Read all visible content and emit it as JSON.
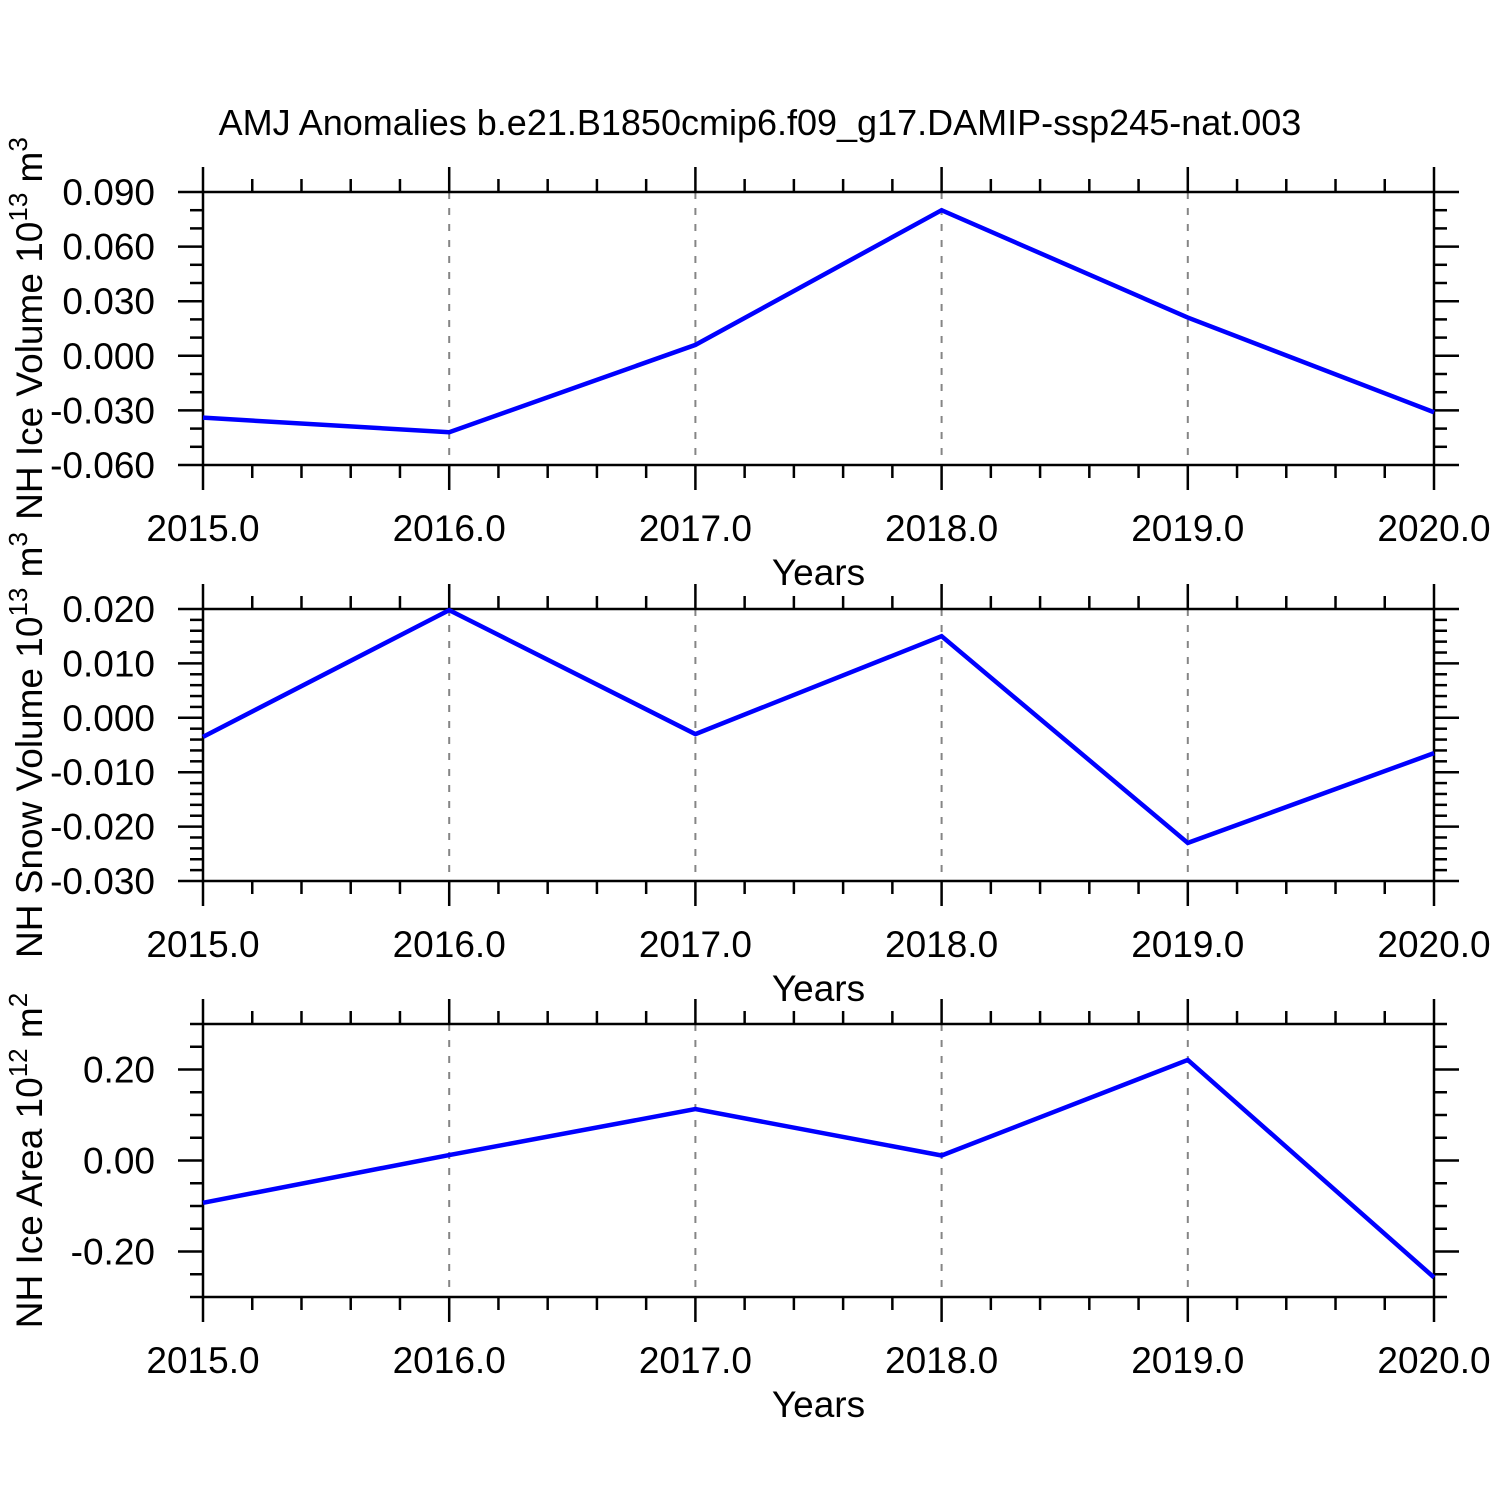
{
  "title": "AMJ Anomalies b.e21.B1850cmip6.f09_g17.DAMIP-ssp245-nat.003",
  "colors": {
    "line": "#0000ff",
    "axis": "#000000",
    "grid": "#858585",
    "text": "#000000",
    "background": "#ffffff"
  },
  "chart_data": [
    {
      "type": "line",
      "name": "nh-ice-volume",
      "ylabel_text": "NH Ice Volume 10^13 m^3",
      "ylabel_parts": [
        {
          "t": "NH Ice Volume 10"
        },
        {
          "t": "13",
          "sup": true
        },
        {
          "t": " m"
        },
        {
          "t": "3",
          "sup": true
        }
      ],
      "xlabel": "Years",
      "x": [
        2015.0,
        2016.0,
        2017.0,
        2018.0,
        2019.0,
        2020.0
      ],
      "values": [
        -0.034,
        -0.042,
        0.006,
        0.08,
        0.021,
        -0.031
      ],
      "ylim": [
        -0.06,
        0.09
      ],
      "yticks": {
        "values": [
          0.09,
          0.06,
          0.03,
          0.0,
          -0.03,
          -0.06
        ],
        "labels": [
          "0.090",
          "0.060",
          "0.030",
          "0.000",
          "-0.030",
          "-0.060"
        ],
        "minor_step": 0.01
      },
      "xlim": [
        2015.0,
        2020.0
      ],
      "xticks": {
        "values": [
          2015,
          2016,
          2017,
          2018,
          2019,
          2020
        ],
        "labels": [
          "2015.0",
          "2016.0",
          "2017.0",
          "2018.0",
          "2019.0",
          "2020.0"
        ],
        "minor_step": 0.2
      },
      "grid_x": [
        2016,
        2017,
        2018,
        2019
      ],
      "legend": "none",
      "grid": "vertical-dashed-only"
    },
    {
      "type": "line",
      "name": "nh-snow-volume",
      "ylabel_text": "NH Snow Volume 10^13 m^3",
      "ylabel_parts": [
        {
          "t": "NH Snow Volume 10"
        },
        {
          "t": "13",
          "sup": true
        },
        {
          "t": " m"
        },
        {
          "t": "3",
          "sup": true
        }
      ],
      "xlabel": "Years",
      "x": [
        2015.0,
        2016.0,
        2017.0,
        2018.0,
        2019.0,
        2020.0
      ],
      "values": [
        -0.0035,
        0.0198,
        -0.003,
        0.015,
        -0.023,
        -0.0065
      ],
      "ylim": [
        -0.03,
        0.02
      ],
      "yticks": {
        "values": [
          0.02,
          0.01,
          0.0,
          -0.01,
          -0.02,
          -0.03
        ],
        "labels": [
          "0.020",
          "0.010",
          "0.000",
          "-0.010",
          "-0.020",
          "-0.030"
        ],
        "minor_step": 0.002
      },
      "xlim": [
        2015.0,
        2020.0
      ],
      "xticks": {
        "values": [
          2015,
          2016,
          2017,
          2018,
          2019,
          2020
        ],
        "labels": [
          "2015.0",
          "2016.0",
          "2017.0",
          "2018.0",
          "2019.0",
          "2020.0"
        ],
        "minor_step": 0.2
      },
      "grid_x": [
        2016,
        2017,
        2018,
        2019
      ],
      "legend": "none",
      "grid": "vertical-dashed-only"
    },
    {
      "type": "line",
      "name": "nh-ice-area",
      "ylabel_text": "NH Ice Area 10^12 m^2",
      "ylabel_parts": [
        {
          "t": "NH Ice Area 10"
        },
        {
          "t": "12",
          "sup": true
        },
        {
          "t": " m"
        },
        {
          "t": "2",
          "sup": true
        }
      ],
      "xlabel": "Years",
      "x": [
        2015.0,
        2016.0,
        2017.0,
        2018.0,
        2019.0,
        2020.0
      ],
      "values": [
        -0.093,
        0.012,
        0.113,
        0.011,
        0.221,
        -0.257
      ],
      "ylim": [
        -0.3,
        0.3
      ],
      "yticks": {
        "values": [
          0.2,
          0.0,
          -0.2
        ],
        "labels": [
          "0.20",
          "0.00",
          "-0.20"
        ],
        "minor_step": 0.05
      },
      "xlim": [
        2015.0,
        2020.0
      ],
      "xticks": {
        "values": [
          2015,
          2016,
          2017,
          2018,
          2019,
          2020
        ],
        "labels": [
          "2015.0",
          "2016.0",
          "2017.0",
          "2018.0",
          "2019.0",
          "2020.0"
        ],
        "minor_step": 0.2
      },
      "grid_x": [
        2016,
        2017,
        2018,
        2019
      ],
      "legend": "none",
      "grid": "vertical-dashed-only"
    }
  ]
}
